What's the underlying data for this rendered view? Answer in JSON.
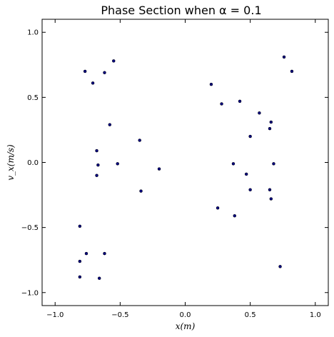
{
  "chart_data": {
    "type": "scatter",
    "title": "Phase Section when α = 0.1",
    "xlabel": "x(m)",
    "ylabel": "v_x(m/s)",
    "xlim": [
      -1.1,
      1.1
    ],
    "ylim": [
      -1.1,
      1.1
    ],
    "xticks": [
      -1.0,
      -0.5,
      0.0,
      0.5,
      1.0
    ],
    "yticks": [
      -1.0,
      -0.5,
      0.0,
      0.5,
      1.0
    ],
    "xtick_labels": [
      "−1.0",
      "−0.5",
      "0.0",
      "0.5",
      "1.0"
    ],
    "ytick_labels": [
      "−1.0",
      "−0.5",
      "0.0",
      "0.5",
      "1.0"
    ],
    "grid": false,
    "legend": "none",
    "marker_color": "#000080",
    "series": [
      {
        "x": [
          -0.77,
          -0.55,
          -0.71,
          -0.62,
          -0.58,
          -0.35,
          -0.68,
          -0.67,
          -0.52,
          -0.68,
          -0.2,
          -0.34,
          -0.81,
          -0.76,
          -0.62,
          -0.81,
          -0.81,
          -0.66,
          0.76,
          0.82,
          0.2,
          0.42,
          0.28,
          0.57,
          0.66,
          0.65,
          0.5,
          0.37,
          0.68,
          0.47,
          0.5,
          0.65,
          0.66,
          0.25,
          0.38,
          0.73
        ],
        "y": [
          0.7,
          0.78,
          0.61,
          0.69,
          0.29,
          0.17,
          0.09,
          -0.02,
          -0.01,
          -0.1,
          -0.05,
          -0.22,
          -0.49,
          -0.7,
          -0.7,
          -0.76,
          -0.88,
          -0.89,
          0.81,
          0.7,
          0.6,
          0.47,
          0.45,
          0.38,
          0.31,
          0.26,
          0.2,
          -0.01,
          -0.01,
          -0.09,
          -0.21,
          -0.21,
          -0.28,
          -0.35,
          -0.41,
          -0.8
        ]
      }
    ]
  }
}
